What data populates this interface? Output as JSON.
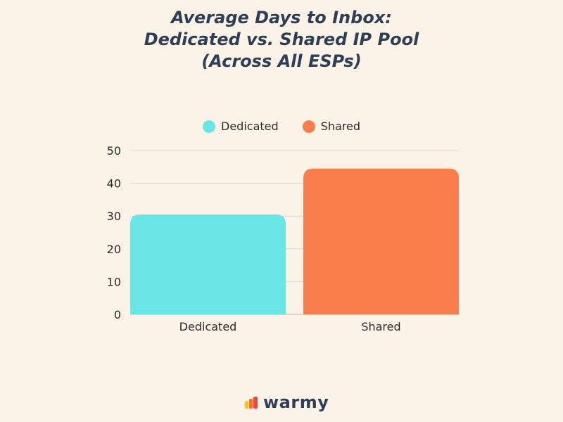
{
  "chart_data": {
    "type": "bar",
    "title_lines": [
      "Average Days to Inbox:",
      "Dedicated vs. Shared IP Pool",
      "(Across All ESPs)"
    ],
    "categories": [
      "Dedicated",
      "Shared"
    ],
    "series": [
      {
        "name": "Dedicated",
        "color": "#6ae5e6"
      },
      {
        "name": "Shared",
        "color": "#fa7d4c"
      }
    ],
    "values": [
      30.5,
      44.5
    ],
    "bar_colors": [
      "#6ae5e6",
      "#fa7d4c"
    ],
    "ylim": [
      0,
      50
    ],
    "yticks": [
      0,
      10,
      20,
      30,
      40,
      50
    ],
    "grid": true,
    "legend_position": "top-center",
    "xlabel": "",
    "ylabel": ""
  },
  "logo": {
    "text": "warmy",
    "colors": [
      "#fbbf24",
      "#f97316",
      "#ef4444"
    ]
  }
}
